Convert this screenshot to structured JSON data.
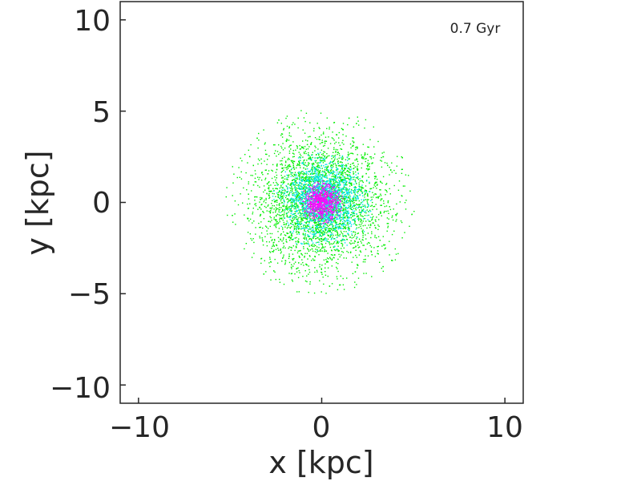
{
  "chart_data": {
    "type": "scatter",
    "title": "",
    "xlabel": "x [kpc]",
    "ylabel": "y [kpc]",
    "xlim": [
      -11,
      11
    ],
    "ylim": [
      -11,
      11
    ],
    "xticks": [
      -10,
      0,
      10
    ],
    "xtick_labels": [
      "−10",
      "0",
      "10"
    ],
    "yticks": [
      10,
      5,
      0,
      -5,
      -10
    ],
    "ytick_labels": [
      "10",
      "5",
      "0",
      "−5",
      "−10"
    ],
    "grid": false,
    "annotation": "0.7 Gyr",
    "series": [
      {
        "color": "#00ee00",
        "center": [
          -0.1,
          0.0
        ],
        "radius_std": 1.8,
        "extent": 5.2,
        "count": 3400
      },
      {
        "color": "#00e5ee",
        "center": [
          0.1,
          0.1
        ],
        "radius_std": 1.0,
        "extent": 2.8,
        "count": 1500
      },
      {
        "color": "#ff00ff",
        "center": [
          0.0,
          0.0
        ],
        "radius_std": 0.45,
        "extent": 1.2,
        "count": 650
      }
    ]
  }
}
